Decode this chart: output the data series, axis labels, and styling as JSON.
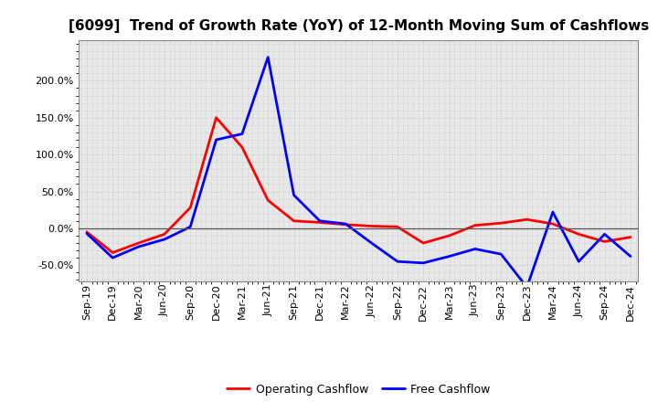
{
  "title": "[6099]  Trend of Growth Rate (YoY) of 12-Month Moving Sum of Cashflows",
  "x_labels": [
    "Sep-19",
    "Dec-19",
    "Mar-20",
    "Jun-20",
    "Sep-20",
    "Dec-20",
    "Mar-21",
    "Jun-21",
    "Sep-21",
    "Dec-21",
    "Mar-22",
    "Jun-22",
    "Sep-22",
    "Dec-22",
    "Mar-23",
    "Jun-23",
    "Sep-23",
    "Dec-23",
    "Mar-24",
    "Jun-24",
    "Sep-24",
    "Dec-24"
  ],
  "operating_cashflow": [
    -0.05,
    -0.33,
    -0.2,
    -0.08,
    0.28,
    1.5,
    1.1,
    0.38,
    0.1,
    0.08,
    0.05,
    0.03,
    0.02,
    -0.2,
    -0.1,
    0.04,
    0.07,
    0.12,
    0.06,
    -0.08,
    -0.18,
    -0.12
  ],
  "free_cashflow": [
    -0.07,
    -0.4,
    -0.25,
    -0.15,
    0.02,
    1.2,
    1.28,
    2.32,
    0.45,
    0.1,
    0.06,
    -0.2,
    -0.45,
    -0.47,
    -0.38,
    -0.28,
    -0.35,
    -0.8,
    0.22,
    -0.45,
    -0.08,
    -0.38
  ],
  "operating_color": "#FF0000",
  "free_color": "#0000FF",
  "ylim_min": -0.72,
  "ylim_max": 2.55,
  "yticks": [
    -0.5,
    0.0,
    0.5,
    1.0,
    1.5,
    2.0
  ],
  "plot_bg_color": "#E8E8E8",
  "fig_bg_color": "#FFFFFF",
  "grid_color": "#BBBBBB",
  "zero_line_color": "#555555",
  "legend_op": "Operating Cashflow",
  "legend_free": "Free Cashflow",
  "title_fontsize": 11,
  "tick_fontsize": 8,
  "legend_fontsize": 9,
  "linewidth": 2.0
}
